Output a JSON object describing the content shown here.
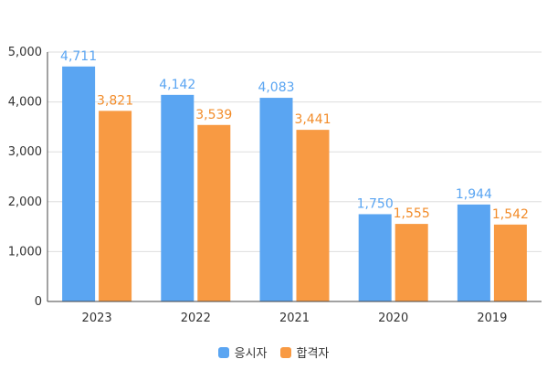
{
  "chart_data": {
    "type": "bar",
    "categories": [
      "2023",
      "2022",
      "2021",
      "2020",
      "2019"
    ],
    "series": [
      {
        "name": "응시자",
        "color": "#5aa5f2",
        "label_color": "#5aa5f2",
        "values": [
          4711,
          4142,
          4083,
          1750,
          1944
        ]
      },
      {
        "name": "합격자",
        "color": "#f89a43",
        "label_color": "#f28c2a",
        "values": [
          3821,
          3539,
          3441,
          1555,
          1542
        ]
      }
    ],
    "ylim": [
      0,
      5000
    ],
    "yticks": [
      "0",
      "1,000",
      "2,000",
      "3,000",
      "4,000",
      "5,000"
    ],
    "grid": true,
    "legend": "bottom"
  }
}
